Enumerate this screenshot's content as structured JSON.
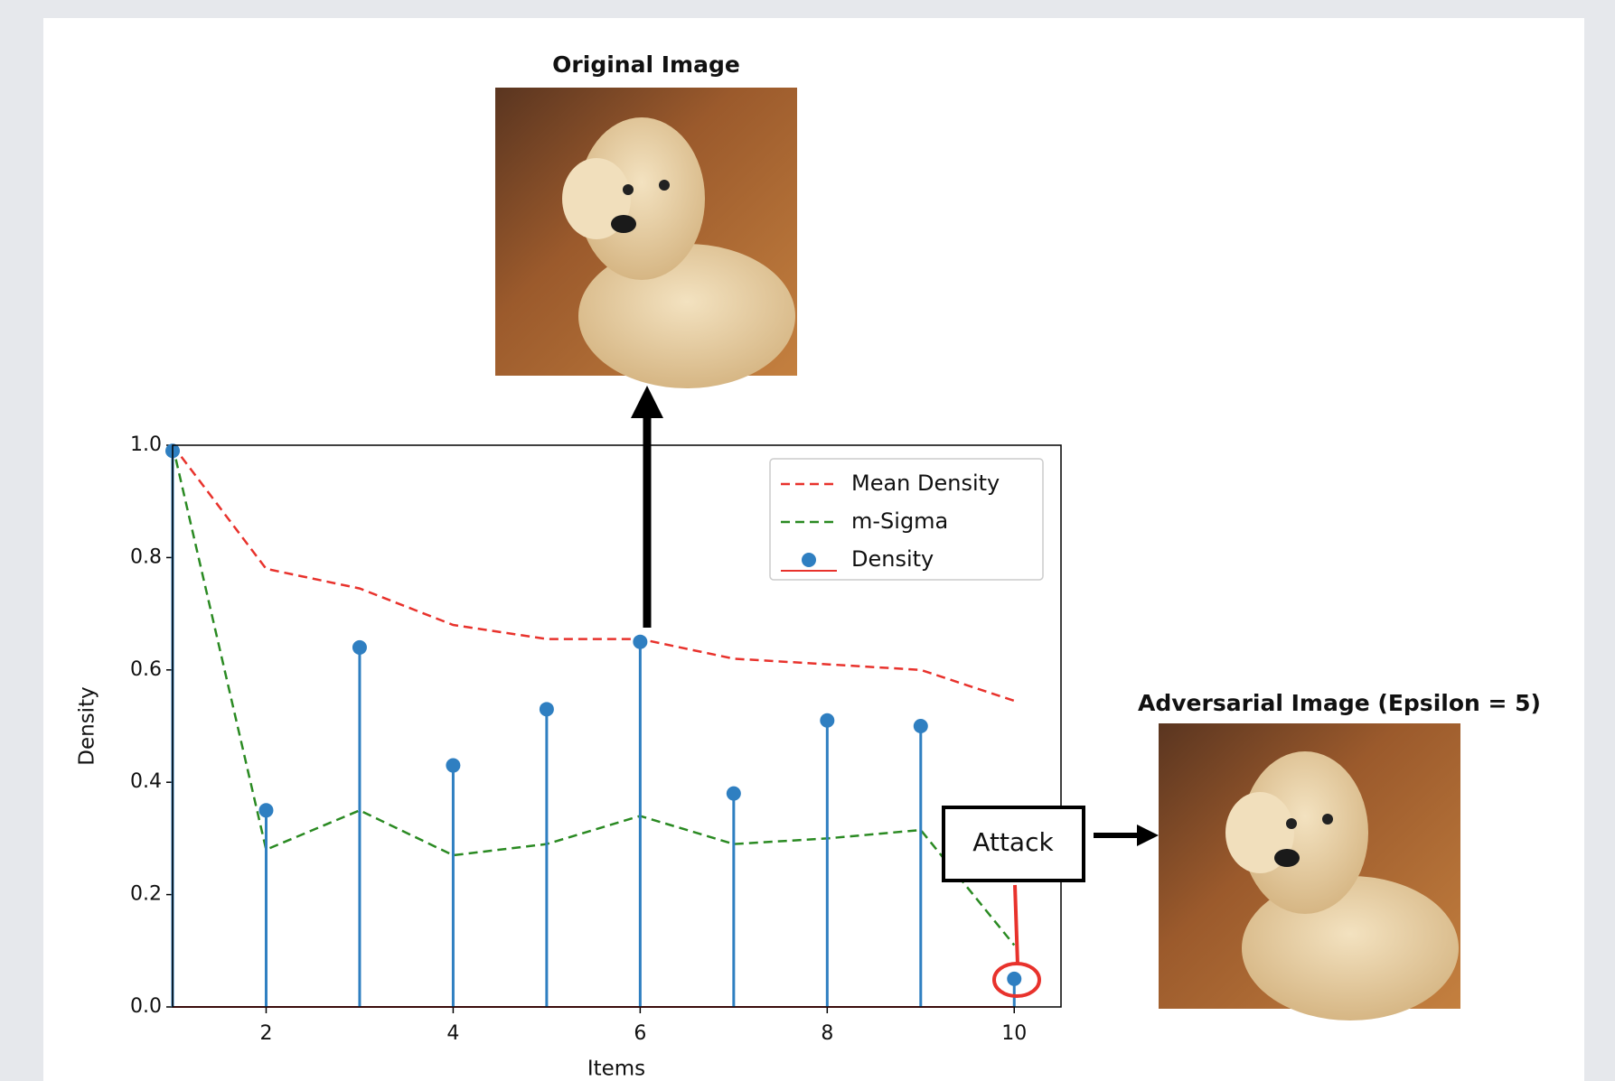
{
  "chart_data": {
    "type": "stem",
    "annotations": {
      "original_title": "Original Image",
      "adversarial_title": "Adversarial Image (Epsilon = 5)",
      "attack": "Attack"
    },
    "x_label": "Items",
    "y_label": "Density",
    "x": [
      1,
      2,
      3,
      4,
      5,
      6,
      7,
      8,
      9,
      10
    ],
    "series": [
      {
        "name": "Mean Density",
        "kind": "line",
        "color": "#e8322c",
        "values": [
          1.0,
          0.78,
          0.745,
          0.68,
          0.655,
          0.655,
          0.62,
          0.61,
          0.6,
          0.545
        ]
      },
      {
        "name": "m-Sigma",
        "kind": "line",
        "color": "#2a8a22",
        "values": [
          1.0,
          0.28,
          0.35,
          0.27,
          0.29,
          0.34,
          0.29,
          0.3,
          0.315,
          0.11
        ]
      },
      {
        "name": "Density",
        "kind": "stem",
        "color": "#2f7fc1",
        "baseline_color": "#e8322c",
        "values": [
          0.99,
          0.35,
          0.64,
          0.43,
          0.53,
          0.65,
          0.38,
          0.51,
          0.5,
          0.05
        ]
      }
    ],
    "xlim": [
      1,
      10.5
    ],
    "xticks": [
      2,
      4,
      6,
      8,
      10
    ],
    "ylim": [
      0,
      1
    ],
    "yticks": [
      {
        "value": 0,
        "label": "0.0"
      },
      {
        "value": 0.2,
        "label": "0.2"
      },
      {
        "value": 0.4,
        "label": "0.4"
      },
      {
        "value": 0.6,
        "label": "0.6"
      },
      {
        "value": 0.8,
        "label": "0.8"
      },
      {
        "value": 1,
        "label": "1.0"
      }
    ],
    "legend": "upper right"
  }
}
